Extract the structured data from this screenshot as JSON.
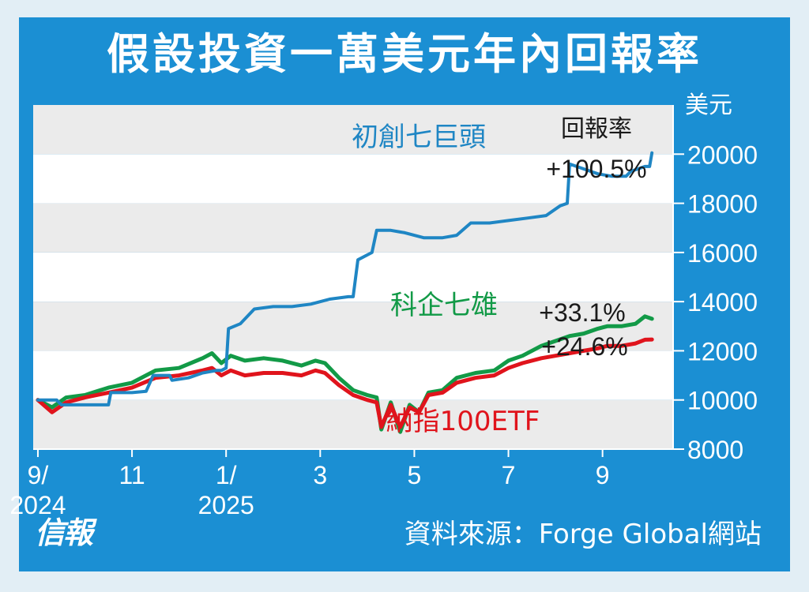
{
  "chart_data": {
    "type": "line",
    "title": "假設投資一萬美元年內回報率",
    "unit_label": "美元",
    "return_header": "回報率",
    "ylim": [
      8000,
      22000
    ],
    "y_ticks": [
      8000,
      10000,
      12000,
      14000,
      16000,
      18000,
      20000
    ],
    "x_ticks": [
      {
        "x": 0,
        "label": "9/",
        "label2": "2024"
      },
      {
        "x": 2,
        "label": "11",
        "label2": ""
      },
      {
        "x": 4,
        "label": "1/",
        "label2": "2025"
      },
      {
        "x": 6,
        "label": "3",
        "label2": ""
      },
      {
        "x": 8,
        "label": "5",
        "label2": ""
      },
      {
        "x": 10,
        "label": "7",
        "label2": ""
      },
      {
        "x": 12,
        "label": "9",
        "label2": ""
      }
    ],
    "xlim": [
      -0.1,
      13.5
    ],
    "grid": "horizontal bands",
    "series": [
      {
        "name": "初創七巨頭",
        "return_label": "+100.5%",
        "color": "#1f86c4",
        "step": true,
        "points": [
          [
            0.0,
            10000
          ],
          [
            0.4,
            10000
          ],
          [
            0.5,
            9800
          ],
          [
            1.0,
            9800
          ],
          [
            1.5,
            9800
          ],
          [
            1.55,
            10300
          ],
          [
            2.0,
            10300
          ],
          [
            2.3,
            10350
          ],
          [
            2.45,
            11000
          ],
          [
            2.8,
            11000
          ],
          [
            2.85,
            10800
          ],
          [
            3.2,
            10900
          ],
          [
            3.5,
            11100
          ],
          [
            3.8,
            11200
          ],
          [
            3.9,
            11200
          ],
          [
            4.0,
            11300
          ],
          [
            4.05,
            12900
          ],
          [
            4.3,
            13100
          ],
          [
            4.6,
            13700
          ],
          [
            5.0,
            13800
          ],
          [
            5.4,
            13800
          ],
          [
            5.8,
            13900
          ],
          [
            6.2,
            14100
          ],
          [
            6.6,
            14200
          ],
          [
            6.7,
            14200
          ],
          [
            6.8,
            15700
          ],
          [
            7.1,
            16000
          ],
          [
            7.2,
            16900
          ],
          [
            7.5,
            16900
          ],
          [
            7.8,
            16800
          ],
          [
            8.2,
            16600
          ],
          [
            8.6,
            16600
          ],
          [
            8.9,
            16700
          ],
          [
            9.2,
            17200
          ],
          [
            9.6,
            17200
          ],
          [
            10.0,
            17300
          ],
          [
            10.4,
            17400
          ],
          [
            10.8,
            17500
          ],
          [
            11.1,
            17900
          ],
          [
            11.25,
            18000
          ],
          [
            11.3,
            19600
          ],
          [
            11.6,
            19400
          ],
          [
            11.9,
            19200
          ],
          [
            12.2,
            19100
          ],
          [
            12.4,
            19100
          ],
          [
            12.5,
            19100
          ],
          [
            12.6,
            19300
          ],
          [
            12.9,
            19500
          ],
          [
            13.0,
            19500
          ],
          [
            13.05,
            20050
          ]
        ]
      },
      {
        "name": "科企七雄",
        "return_label": "+33.1%",
        "color": "#129a47",
        "step": false,
        "points": [
          [
            0.0,
            10000
          ],
          [
            0.3,
            9700
          ],
          [
            0.6,
            10100
          ],
          [
            1.0,
            10200
          ],
          [
            1.5,
            10500
          ],
          [
            2.0,
            10700
          ],
          [
            2.5,
            11200
          ],
          [
            3.0,
            11300
          ],
          [
            3.5,
            11700
          ],
          [
            3.7,
            11900
          ],
          [
            3.9,
            11500
          ],
          [
            4.1,
            11800
          ],
          [
            4.4,
            11600
          ],
          [
            4.8,
            11700
          ],
          [
            5.2,
            11600
          ],
          [
            5.6,
            11400
          ],
          [
            5.9,
            11600
          ],
          [
            6.1,
            11500
          ],
          [
            6.4,
            10900
          ],
          [
            6.7,
            10400
          ],
          [
            7.0,
            10200
          ],
          [
            7.2,
            10100
          ],
          [
            7.3,
            8800
          ],
          [
            7.5,
            9900
          ],
          [
            7.7,
            8700
          ],
          [
            7.9,
            9800
          ],
          [
            8.1,
            9500
          ],
          [
            8.3,
            10300
          ],
          [
            8.6,
            10400
          ],
          [
            8.9,
            10900
          ],
          [
            9.3,
            11100
          ],
          [
            9.7,
            11200
          ],
          [
            10.0,
            11600
          ],
          [
            10.3,
            11800
          ],
          [
            10.7,
            12200
          ],
          [
            11.0,
            12400
          ],
          [
            11.3,
            12600
          ],
          [
            11.6,
            12700
          ],
          [
            11.9,
            12900
          ],
          [
            12.1,
            13000
          ],
          [
            12.4,
            13000
          ],
          [
            12.7,
            13100
          ],
          [
            12.9,
            13400
          ],
          [
            13.05,
            13300
          ]
        ]
      },
      {
        "name": "納指100ETF",
        "return_label": "+24.6%",
        "color": "#e0141c",
        "step": false,
        "points": [
          [
            0.0,
            10000
          ],
          [
            0.3,
            9500
          ],
          [
            0.6,
            9900
          ],
          [
            1.0,
            10100
          ],
          [
            1.5,
            10300
          ],
          [
            2.0,
            10500
          ],
          [
            2.5,
            10900
          ],
          [
            3.0,
            11000
          ],
          [
            3.5,
            11200
          ],
          [
            3.7,
            11300
          ],
          [
            3.9,
            11000
          ],
          [
            4.1,
            11200
          ],
          [
            4.4,
            11000
          ],
          [
            4.8,
            11100
          ],
          [
            5.2,
            11100
          ],
          [
            5.6,
            11000
          ],
          [
            5.9,
            11200
          ],
          [
            6.1,
            11100
          ],
          [
            6.4,
            10600
          ],
          [
            6.7,
            10200
          ],
          [
            7.0,
            10000
          ],
          [
            7.2,
            9900
          ],
          [
            7.3,
            8900
          ],
          [
            7.5,
            9800
          ],
          [
            7.7,
            8900
          ],
          [
            7.9,
            9700
          ],
          [
            8.1,
            9500
          ],
          [
            8.3,
            10200
          ],
          [
            8.6,
            10300
          ],
          [
            8.9,
            10700
          ],
          [
            9.3,
            10900
          ],
          [
            9.7,
            11000
          ],
          [
            10.0,
            11300
          ],
          [
            10.3,
            11500
          ],
          [
            10.7,
            11700
          ],
          [
            11.0,
            11800
          ],
          [
            11.3,
            11900
          ],
          [
            11.6,
            12000
          ],
          [
            11.9,
            12100
          ],
          [
            12.1,
            12200
          ],
          [
            12.4,
            12200
          ],
          [
            12.7,
            12300
          ],
          [
            12.9,
            12450
          ],
          [
            13.05,
            12460
          ]
        ]
      }
    ]
  },
  "source": "資料來源：Forge Global網站",
  "logo": "信報"
}
